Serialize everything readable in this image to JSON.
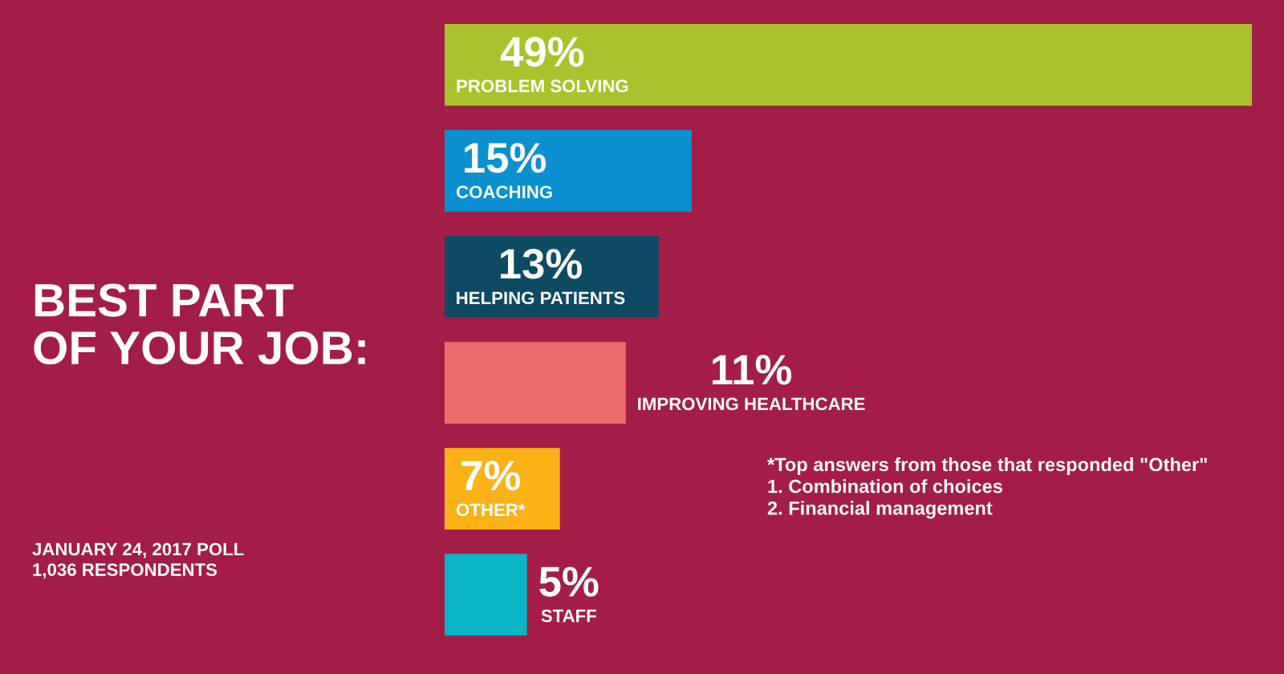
{
  "chart_data": {
    "type": "bar",
    "orientation": "horizontal",
    "title": "BEST PART\nOF YOUR JOB:",
    "categories": [
      "PROBLEM SOLVING",
      "COACHING",
      "HELPING PATIENTS",
      "IMPROVING HEALTHCARE",
      "OTHER*",
      "STAFF"
    ],
    "values": [
      49,
      15,
      13,
      11,
      7,
      5
    ],
    "value_labels": [
      "49%",
      "15%",
      "13%",
      "11%",
      "7%",
      "5%"
    ],
    "colors": [
      "#aac22c",
      "#0a90d0",
      "#0d4a64",
      "#ef6c6c",
      "#fbb216",
      "#0ab5c6"
    ],
    "annotations": [
      "JANUARY 24, 2017 POLL\n1,036 RESPONDENTS",
      "*Top answers from those that responded \"Other\"\n1. Combination of choices\n2. Financial management"
    ]
  }
}
